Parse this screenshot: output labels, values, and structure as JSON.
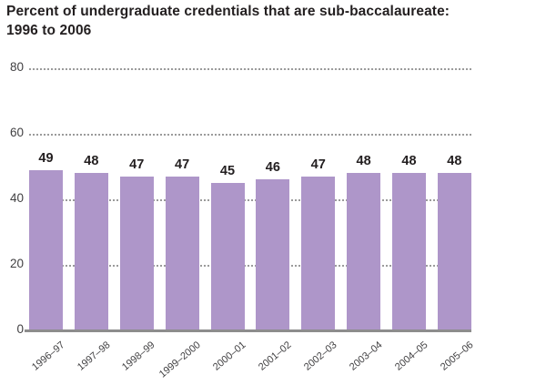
{
  "header": {
    "title_line1": "Percent of undergraduate credentials that are sub-baccalaureate:",
    "title_line2": "1996 to 2006"
  },
  "chart_data": {
    "type": "bar",
    "title": "Percent of undergraduate credentials that are sub-baccalaureate: 1996 to 2006",
    "categories": [
      "1996–97",
      "1997–98",
      "1998–99",
      "1999–2000",
      "2000–01",
      "2001–02",
      "2002–03",
      "2003–04",
      "2004–05",
      "2005–06"
    ],
    "values": [
      49,
      48,
      47,
      47,
      45,
      46,
      47,
      48,
      48,
      48
    ],
    "xlabel": "",
    "ylabel": "",
    "ylim": [
      0,
      80
    ],
    "yticks": [
      0,
      20,
      40,
      60,
      80
    ],
    "grid": "horizontal-dotted",
    "legend": "none",
    "value_labels_shown": true,
    "colors": {
      "bar_fill": "#ae96c9",
      "gridline": "#9b9b9b",
      "axis_line": "#8d8d8d",
      "title_text": "#231f20",
      "value_label_text": "#231f20",
      "tick_text": "#414042",
      "background": "#ffffff"
    }
  }
}
